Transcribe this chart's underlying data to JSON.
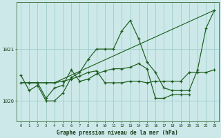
{
  "background_color": "#cce8e8",
  "grid_color": "#9ecece",
  "line_color": "#1a5c1a",
  "title": "Graphe pression niveau de la mer (hPa)",
  "xlim": [
    -0.5,
    23.5
  ],
  "ylim": [
    1019.6,
    1021.9
  ],
  "yticks": [
    1020,
    1021
  ],
  "xticks": [
    0,
    1,
    2,
    3,
    4,
    5,
    6,
    7,
    8,
    9,
    10,
    11,
    12,
    13,
    14,
    15,
    16,
    17,
    18,
    19,
    20,
    21,
    22,
    23
  ],
  "series": [
    {
      "x": [
        0,
        4,
        23
      ],
      "y": [
        1020.35,
        1020.35,
        1021.75
      ],
      "style": "line_only"
    },
    {
      "x": [
        0,
        1,
        2,
        3,
        4,
        5,
        6,
        7,
        8,
        9,
        10,
        11,
        12,
        13,
        14,
        15,
        16,
        17,
        18,
        19,
        20,
        21,
        22,
        23
      ],
      "y": [
        1020.5,
        1020.2,
        1020.3,
        1020.0,
        1020.0,
        1020.15,
        1020.45,
        1020.55,
        1020.8,
        1021.0,
        1021.0,
        1021.0,
        1021.35,
        1021.55,
        1021.2,
        1020.75,
        1020.55,
        1020.25,
        1020.2,
        1020.2,
        1020.2,
        1020.6,
        1021.4,
        1021.75
      ],
      "style": "line_marker"
    },
    {
      "x": [
        0,
        1,
        2,
        3,
        4,
        5,
        6,
        7,
        8,
        9,
        10,
        11,
        12,
        13,
        14,
        15,
        16,
        17,
        18,
        19,
        20,
        21,
        22,
        23
      ],
      "y": [
        1020.35,
        1020.35,
        1020.35,
        1020.35,
        1020.35,
        1020.38,
        1020.42,
        1020.48,
        1020.55,
        1020.58,
        1020.35,
        1020.35,
        1020.35,
        1020.38,
        1020.38,
        1020.35,
        1020.38,
        1020.38,
        1020.38,
        1020.38,
        1020.55,
        1020.55,
        1020.55,
        1020.6
      ],
      "style": "line_marker"
    },
    {
      "x": [
        1,
        2,
        3,
        4,
        5,
        6,
        7,
        8,
        9,
        10,
        11,
        12,
        13,
        14,
        15,
        16,
        17,
        18,
        19,
        20
      ],
      "y": [
        1020.35,
        1020.35,
        1020.05,
        1020.25,
        1020.3,
        1020.6,
        1020.38,
        1020.42,
        1020.52,
        1020.58,
        1020.62,
        1020.62,
        1020.65,
        1020.72,
        1020.62,
        1020.05,
        1020.05,
        1020.12,
        1020.12,
        1020.12
      ],
      "style": "line_marker"
    }
  ]
}
